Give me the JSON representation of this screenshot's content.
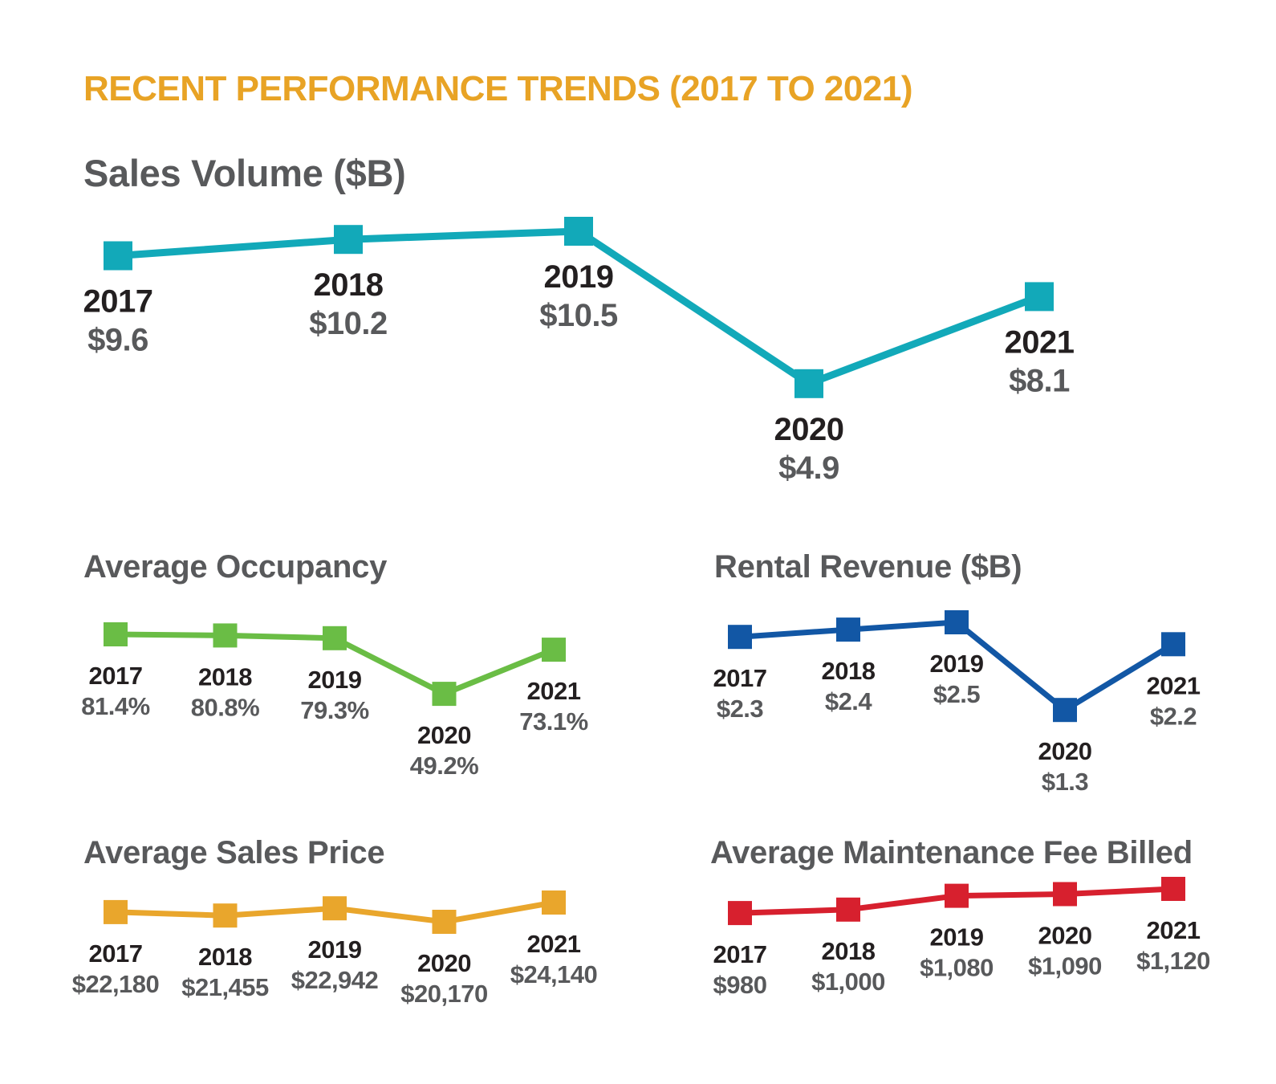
{
  "header": {
    "title": "RECENT PERFORMANCE TRENDS (2017 TO 2021)",
    "color": "#E8A325"
  },
  "chart_data": [
    {
      "id": "sales_volume",
      "type": "line",
      "title": "Sales Volume ($B)",
      "categories": [
        "2017",
        "2018",
        "2019",
        "2020",
        "2021"
      ],
      "values": [
        9.6,
        10.2,
        10.5,
        4.9,
        8.1
      ],
      "value_labels": [
        "$9.6",
        "$10.2",
        "$10.5",
        "$4.9",
        "$8.1"
      ],
      "color": "#12A9B9",
      "marker": "square",
      "data_labels": true,
      "axes_hidden": true,
      "grid": false,
      "legend_position": "none"
    },
    {
      "id": "average_occupancy",
      "type": "line",
      "title": "Average Occupancy",
      "categories": [
        "2017",
        "2018",
        "2019",
        "2020",
        "2021"
      ],
      "values": [
        81.4,
        80.8,
        79.3,
        49.2,
        73.1
      ],
      "value_labels": [
        "81.4%",
        "80.8%",
        "79.3%",
        "49.2%",
        "73.1%"
      ],
      "color": "#6ABD45",
      "marker": "square",
      "data_labels": true,
      "axes_hidden": true,
      "grid": false,
      "legend_position": "none"
    },
    {
      "id": "rental_revenue",
      "type": "line",
      "title": "Rental Revenue ($B)",
      "categories": [
        "2017",
        "2018",
        "2019",
        "2020",
        "2021"
      ],
      "values": [
        2.3,
        2.4,
        2.5,
        1.3,
        2.2
      ],
      "value_labels": [
        "$2.3",
        "$2.4",
        "$2.5",
        "$1.3",
        "$2.2"
      ],
      "color": "#1257A5",
      "marker": "square",
      "data_labels": true,
      "axes_hidden": true,
      "grid": false,
      "legend_position": "none"
    },
    {
      "id": "average_sales_price",
      "type": "line",
      "title": "Average Sales Price",
      "categories": [
        "2017",
        "2018",
        "2019",
        "2020",
        "2021"
      ],
      "values": [
        22180,
        21455,
        22942,
        20170,
        24140
      ],
      "value_labels": [
        "$22,180",
        "$21,455",
        "$22,942",
        "$20,170",
        "$24,140"
      ],
      "color": "#E9A62C",
      "marker": "square",
      "data_labels": true,
      "axes_hidden": true,
      "grid": false,
      "legend_position": "none"
    },
    {
      "id": "average_maintenance_fee",
      "type": "line",
      "title": "Average Maintenance Fee Billed",
      "categories": [
        "2017",
        "2018",
        "2019",
        "2020",
        "2021"
      ],
      "values": [
        980,
        1000,
        1080,
        1090,
        1120
      ],
      "value_labels": [
        "$980",
        "$1,000",
        "$1,080",
        "$1,090",
        "$1,120"
      ],
      "color": "#D7202E",
      "marker": "square",
      "data_labels": true,
      "axes_hidden": true,
      "grid": false,
      "legend_position": "none"
    }
  ]
}
